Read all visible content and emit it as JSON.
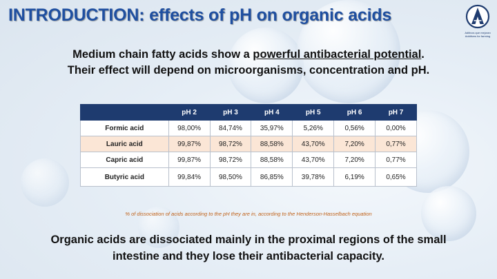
{
  "title": "INTRODUCTION: effects of pH on organic acids",
  "logo": {
    "tagline_line1": "Aditivos que mejoran",
    "tagline_line2": "Additives for farming"
  },
  "intro": {
    "line1_prefix": "Medium chain fatty acids show a ",
    "line1_underlined": "powerful antibacterial potential",
    "line1_suffix": ".",
    "line2": "Their effect will depend on microorganisms, concentration and pH."
  },
  "table": {
    "headers": [
      "",
      "pH 2",
      "pH 3",
      "pH 4",
      "pH 5",
      "pH 6",
      "pH 7"
    ],
    "rows": [
      {
        "acid": "Formic acid",
        "values": [
          "98,00%",
          "84,74%",
          "35,97%",
          "5,26%",
          "0,56%",
          "0,00%"
        ]
      },
      {
        "acid": "Lauric acid",
        "values": [
          "99,87%",
          "98,72%",
          "88,58%",
          "43,70%",
          "7,20%",
          "0,77%"
        ]
      },
      {
        "acid": "Capric acid",
        "values": [
          "99,87%",
          "98,72%",
          "88,58%",
          "43,70%",
          "7,20%",
          "0,77%"
        ]
      },
      {
        "acid": "Butyric acid",
        "values": [
          "99,84%",
          "98,50%",
          "86,85%",
          "39,78%",
          "6,19%",
          "0,65%"
        ]
      }
    ],
    "highlight_color": "#fbe6d6",
    "header_color": "#1e3b6f"
  },
  "footnote": "% of dissociation of acids according to the pH they are in, according to the Henderson-Hasselbach equation",
  "conclusion": {
    "line1": "Organic acids are dissociated mainly in the proximal regions of the small",
    "line2": "intestine and they lose their antibacterial capacity."
  },
  "colors": {
    "title": "#1f4fa0",
    "footnote": "#c0621a"
  }
}
